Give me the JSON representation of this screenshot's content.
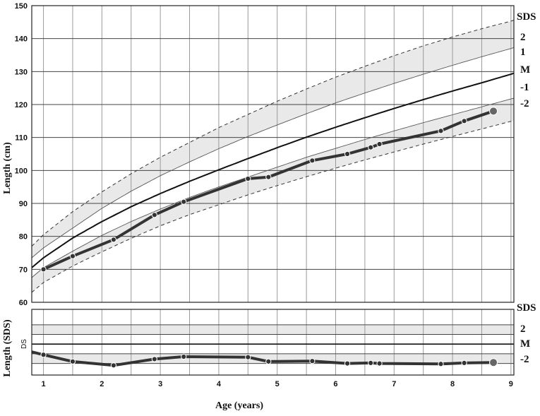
{
  "chart_data": [
    {
      "type": "line",
      "xlabel": "Age (years)",
      "ylabel": "Length (cm)",
      "xlim": [
        0.8,
        9.05
      ],
      "ylim": [
        60,
        150
      ],
      "x_ticks": [
        1,
        2,
        3,
        4,
        5,
        6,
        7,
        8,
        9
      ],
      "y_ticks": [
        60,
        70,
        80,
        90,
        100,
        110,
        120,
        130,
        140,
        150
      ],
      "grid": true,
      "reference_labels": [
        "SDS",
        "2",
        "1",
        "M",
        "-1",
        "-2"
      ],
      "reference_curves": [
        {
          "name": "+2",
          "style": "dashed",
          "x": [
            0.8,
            1,
            1.5,
            2,
            2.5,
            3,
            3.5,
            4,
            4.5,
            5,
            5.5,
            6,
            6.5,
            7,
            7.5,
            8,
            8.5,
            9,
            9.05
          ],
          "y": [
            77,
            80.5,
            87.5,
            93.5,
            99,
            104,
            108.5,
            113,
            117,
            121,
            124.7,
            128.3,
            131.6,
            134.8,
            137.8,
            140.5,
            143,
            145.3,
            145.6
          ]
        },
        {
          "name": "+1",
          "style": "solid-thin",
          "x": [
            0.8,
            1,
            1.5,
            2,
            2.5,
            3,
            3.5,
            4,
            4.5,
            5,
            5.5,
            6,
            6.5,
            7,
            7.5,
            8,
            8.5,
            9,
            9.05
          ],
          "y": [
            73.5,
            76.5,
            82.5,
            88.5,
            93.7,
            98.4,
            102.6,
            106.6,
            110.3,
            113.8,
            117.2,
            120.5,
            123.5,
            126.4,
            129.2,
            131.9,
            134.5,
            137,
            137.3
          ]
        },
        {
          "name": "M",
          "style": "solid",
          "x": [
            0.8,
            1,
            1.5,
            2,
            2.5,
            3,
            3.5,
            4,
            4.5,
            5,
            5.5,
            6,
            6.5,
            7,
            7.5,
            8,
            8.5,
            9,
            9.05
          ],
          "y": [
            70.5,
            73.5,
            79.5,
            84.5,
            89,
            93,
            96.7,
            100.2,
            103.6,
            106.9,
            110.1,
            113.1,
            116,
            118.8,
            121.5,
            124.1,
            126.6,
            129.2,
            129.5
          ]
        },
        {
          "name": "-1",
          "style": "solid-thin",
          "x": [
            0.8,
            1,
            1.5,
            2,
            2.5,
            3,
            3.5,
            4,
            4.5,
            5,
            5.5,
            6,
            6.5,
            7,
            7.5,
            8,
            8.5,
            9,
            9.05
          ],
          "y": [
            67.5,
            70.5,
            75.5,
            80.3,
            84.5,
            88.3,
            91.8,
            95,
            98,
            101,
            104,
            106.7,
            109.4,
            112,
            114.5,
            116.9,
            119.3,
            121.7,
            121.9
          ]
        },
        {
          "name": "-2",
          "style": "dashed",
          "x": [
            0.8,
            1,
            1.5,
            2,
            2.5,
            3,
            3.5,
            4,
            4.5,
            5,
            5.5,
            6,
            6.5,
            7,
            7.5,
            8,
            8.5,
            9,
            9.05
          ],
          "y": [
            63,
            66,
            71,
            75.3,
            79.4,
            83.2,
            86.6,
            89.6,
            92.6,
            95.4,
            98.1,
            100.7,
            103.2,
            105.6,
            108,
            110.3,
            112.6,
            114.9,
            115.1
          ]
        }
      ],
      "series": [
        {
          "x": [
            1.0,
            1.5,
            2.2,
            2.9,
            3.4,
            4.5,
            4.85,
            5.6,
            6.2,
            6.6,
            6.75,
            7.8,
            8.2,
            8.7
          ],
          "y": [
            70,
            74,
            79,
            86.5,
            90.5,
            97.5,
            98,
            103,
            105,
            107,
            108,
            112,
            115,
            118
          ]
        }
      ]
    },
    {
      "type": "line",
      "xlabel": "Age (years)",
      "ylabel": "Length (SDS)",
      "inner_label": "DS",
      "xlim": [
        0.8,
        9.05
      ],
      "ylim": [
        -3.2,
        3.6
      ],
      "x_ticks": [
        1,
        2,
        3,
        4,
        5,
        6,
        7,
        8,
        9
      ],
      "reference_labels": [
        "SDS",
        "2",
        "M",
        "-2"
      ],
      "reference_lines": [
        -2,
        -1,
        0,
        1,
        2
      ],
      "shaded_bands": [
        [
          -2,
          -1
        ],
        [
          1,
          2
        ]
      ],
      "grid": true,
      "series": [
        {
          "x": [
            0.8,
            1.0,
            1.5,
            2.2,
            2.9,
            3.4,
            4.5,
            4.85,
            5.6,
            6.2,
            6.6,
            6.75,
            7.8,
            8.2,
            8.7
          ],
          "y": [
            -0.8,
            -1.1,
            -1.8,
            -2.2,
            -1.55,
            -1.3,
            -1.35,
            -1.8,
            -1.75,
            -2.0,
            -1.95,
            -2.0,
            -2.05,
            -1.95,
            -1.9
          ]
        }
      ]
    }
  ]
}
